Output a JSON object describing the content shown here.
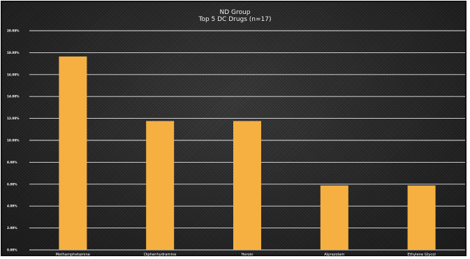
{
  "chart_data": {
    "type": "bar",
    "title": "ND Group",
    "subtitle": "Top 5 DC Drugs (n=17)",
    "categories": [
      "Methamphetamine",
      "Diphenhydramine",
      "Heroin",
      "Alprazolam",
      "Ethylene Glycol"
    ],
    "values": [
      17.65,
      11.76,
      11.76,
      5.88,
      5.88
    ],
    "y_ticks": [
      "0.00%",
      "2.00%",
      "4.00%",
      "6.00%",
      "8.00%",
      "10.00%",
      "12.00%",
      "14.00%",
      "16.00%",
      "18.00%",
      "20.00%"
    ],
    "ylim": [
      0,
      20
    ],
    "grid": true,
    "bar_color": "#f5b041",
    "background_color": "#2b2b2b"
  }
}
